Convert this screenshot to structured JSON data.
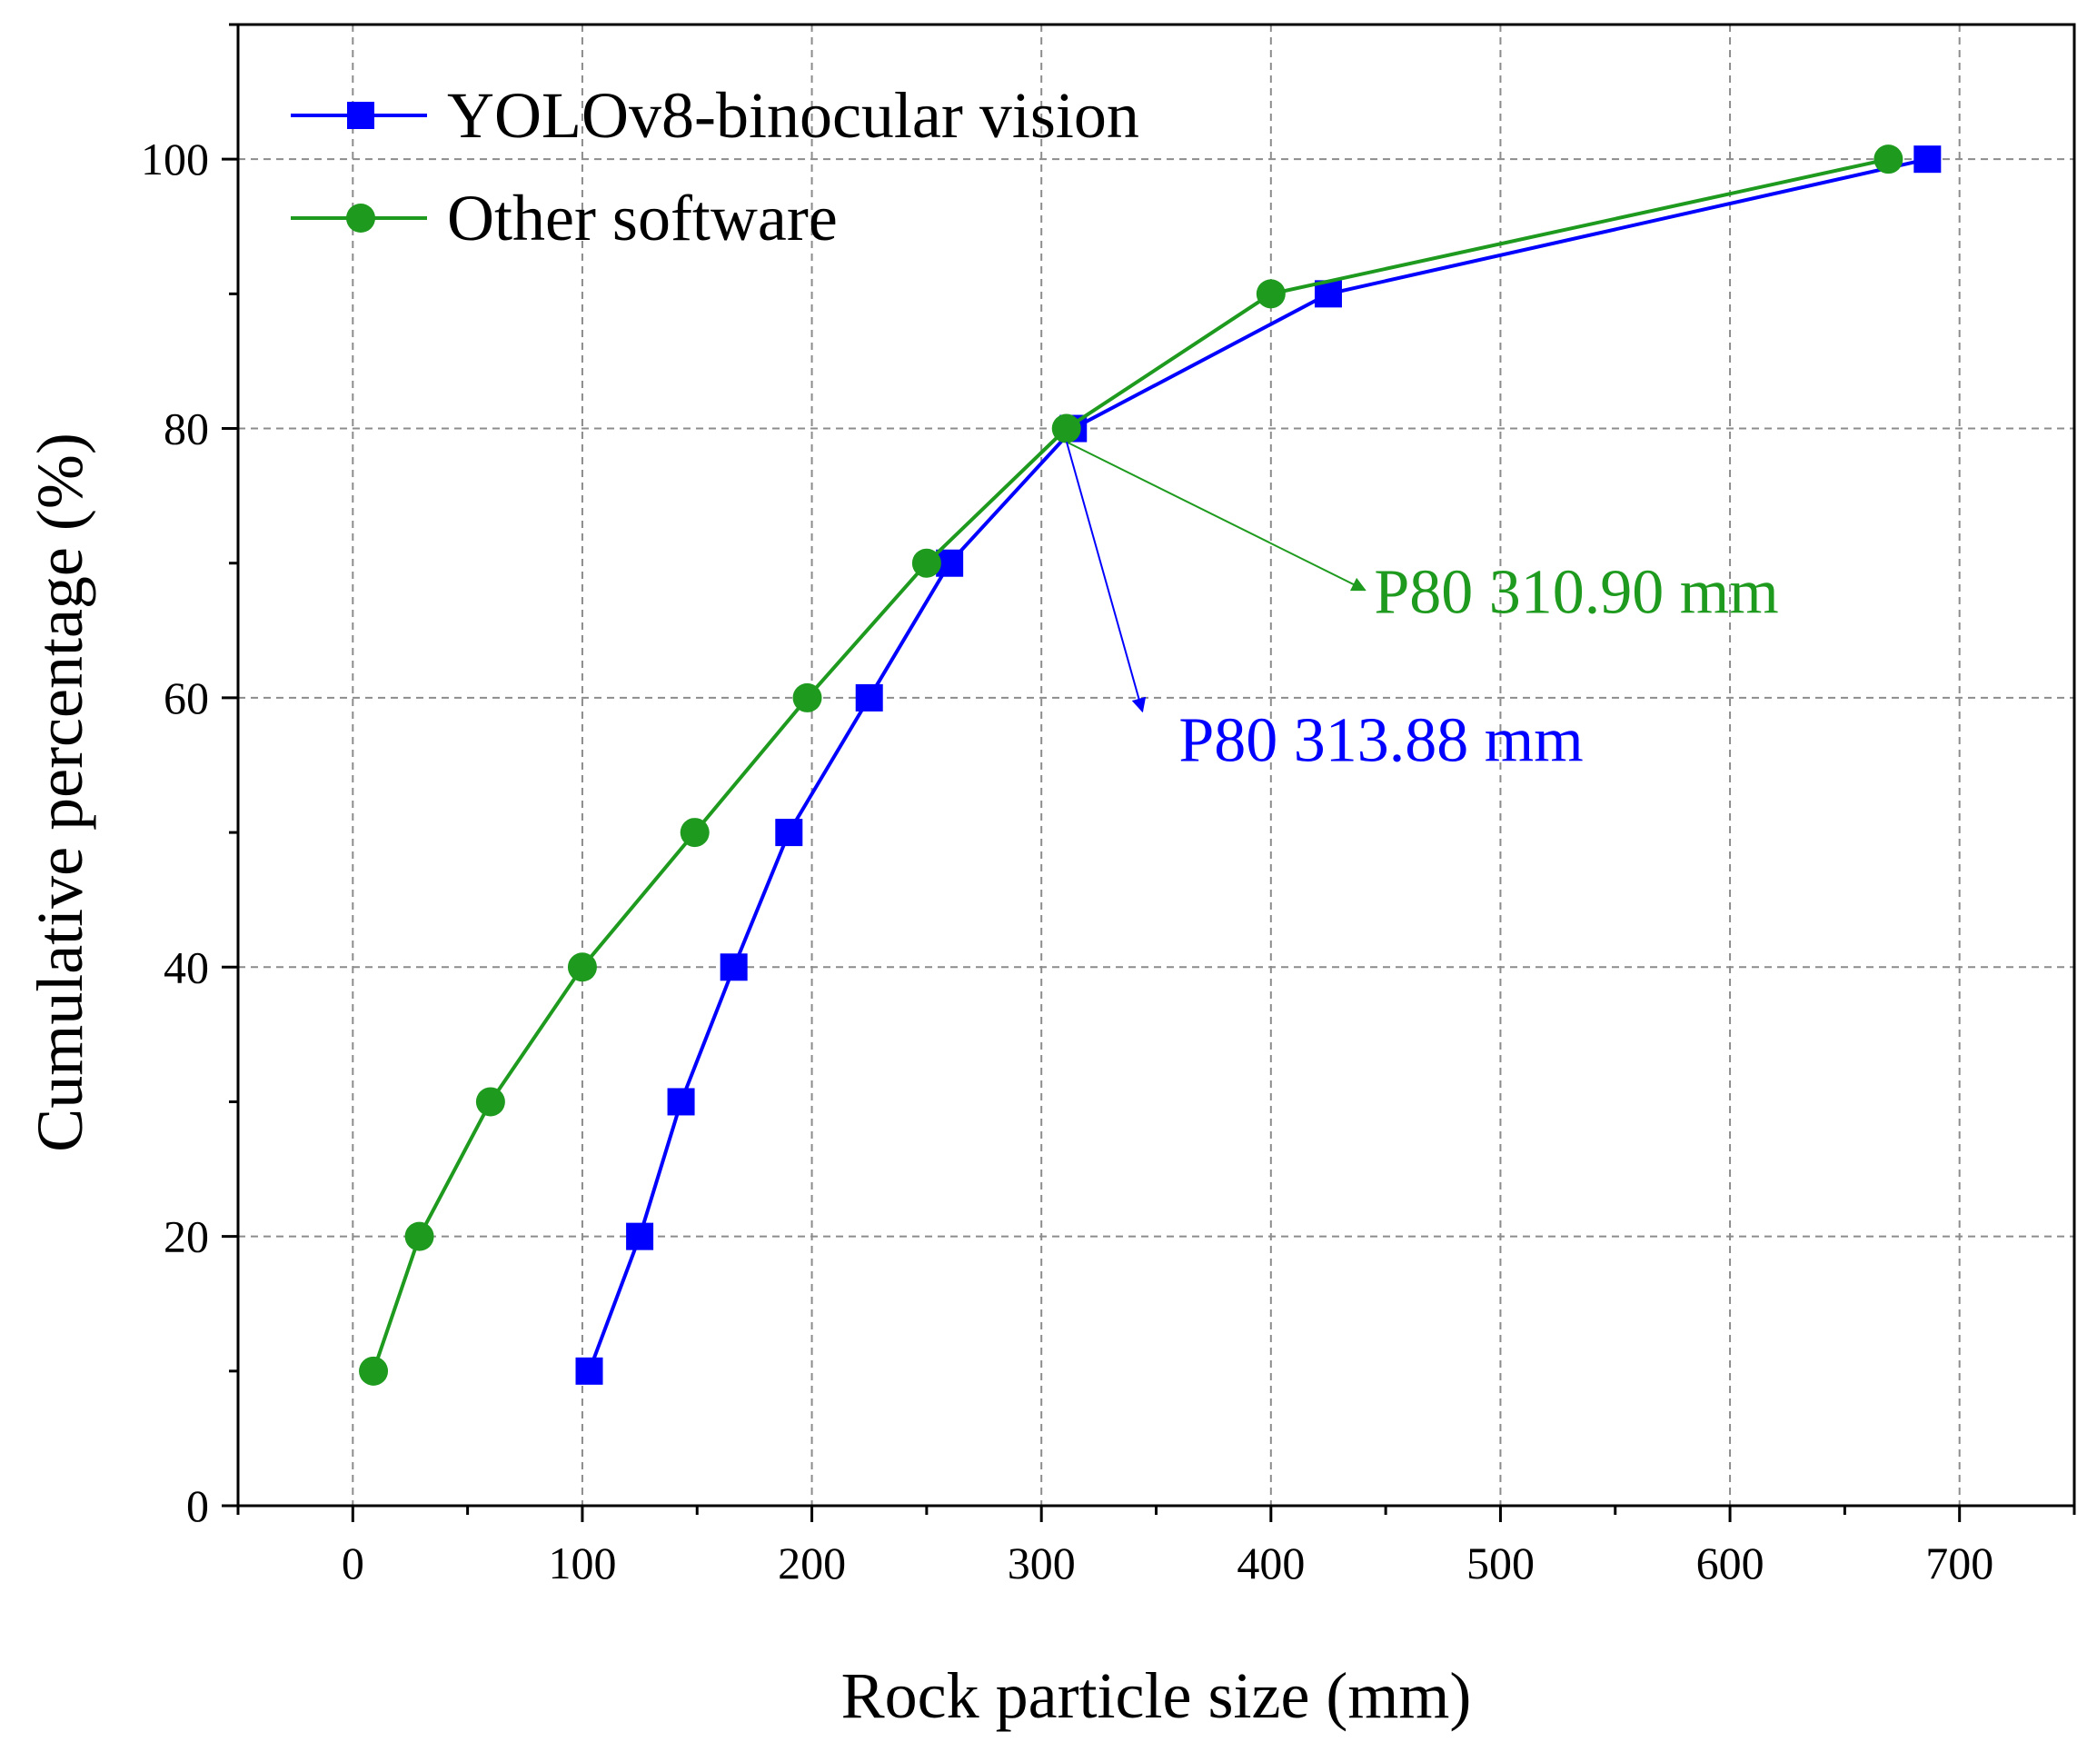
{
  "chart_data": {
    "type": "line",
    "title": "",
    "xlabel": "Rock particle size (mm)",
    "ylabel": "Cumulative percentage (%)",
    "xlim": [
      -50,
      750
    ],
    "ylim": [
      0,
      110
    ],
    "x_ticks": [
      0,
      100,
      200,
      300,
      400,
      500,
      600,
      700
    ],
    "y_ticks": [
      0,
      20,
      40,
      60,
      80,
      100
    ],
    "grid": true,
    "legend_position": "top-left",
    "series": [
      {
        "name": "YOLOv8-binocular vision",
        "color": "#0000ff",
        "marker": "square",
        "x": [
          103,
          125,
          143,
          166,
          190,
          225,
          260,
          313.88,
          425,
          686
        ],
        "y": [
          10,
          20,
          30,
          40,
          50,
          60,
          70,
          80,
          90,
          100
        ]
      },
      {
        "name": "Other software",
        "color": "#1e9a1e",
        "marker": "circle",
        "x": [
          9,
          29,
          60,
          100,
          149,
          198,
          250,
          310.9,
          400,
          669
        ],
        "y": [
          10,
          20,
          30,
          40,
          50,
          60,
          70,
          80,
          90,
          100
        ]
      }
    ],
    "annotations": [
      {
        "text": "P80 310.90 mm",
        "color": "#1e9a1e",
        "arrow_from": [
          311,
          79
        ],
        "arrow_to": [
          441,
          68
        ]
      },
      {
        "text": "P80 313.88 mm",
        "color": "#0000ff",
        "arrow_from": [
          311,
          79
        ],
        "arrow_to": [
          344,
          59
        ]
      }
    ]
  }
}
